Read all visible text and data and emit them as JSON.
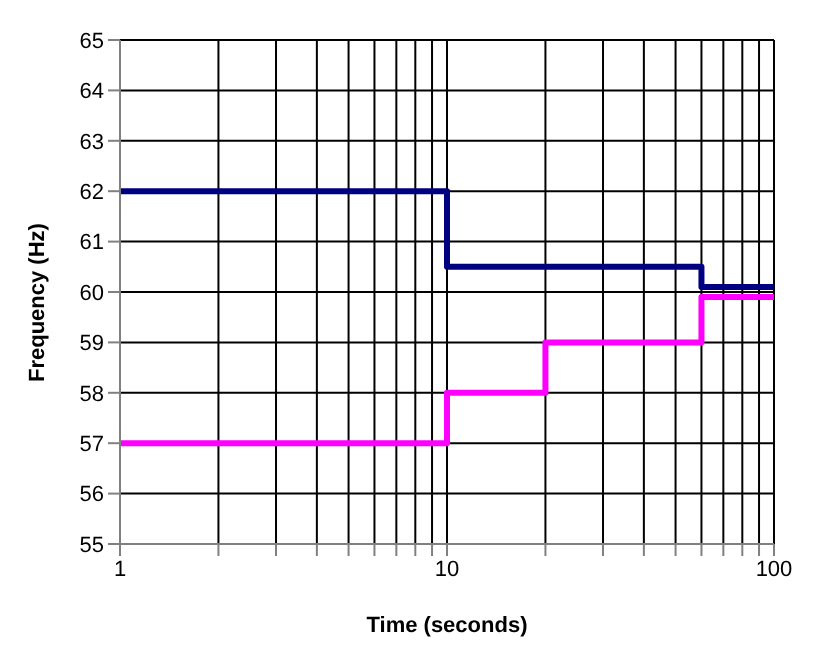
{
  "chart_data": {
    "type": "step",
    "xlabel": "Time (seconds)",
    "ylabel": "Frequency (Hz)",
    "log": "x",
    "grid": true,
    "marker": "none",
    "line_style": "solid",
    "xlim": [
      1,
      100
    ],
    "ylim": [
      55,
      65
    ],
    "xticks": [
      1,
      {
        "value": 2,
        "label": null
      },
      {
        "value": 3,
        "label": null
      },
      {
        "value": 4,
        "label": null
      },
      {
        "value": 5,
        "label": null
      },
      {
        "value": 6,
        "label": null
      },
      {
        "value": 7,
        "label": null
      },
      {
        "value": 8,
        "label": null
      },
      {
        "value": 9,
        "label": null
      },
      10,
      {
        "value": 20,
        "label": null
      },
      {
        "value": 30,
        "label": null
      },
      {
        "value": 40,
        "label": null
      },
      {
        "value": 50,
        "label": null
      },
      {
        "value": 60,
        "label": null
      },
      {
        "value": 70,
        "label": null
      },
      {
        "value": 80,
        "label": null
      },
      {
        "value": 90,
        "label": null
      },
      100
    ],
    "yticks": [
      55,
      56,
      57,
      58,
      59,
      60,
      61,
      62,
      63,
      64,
      65
    ],
    "series": [
      {
        "color": "#000080",
        "x": [
          1,
          10,
          60,
          100
        ],
        "values": [
          62,
          60.5,
          60.1,
          60.1
        ]
      },
      {
        "color": "#ff00ff",
        "x": [
          1,
          10,
          20,
          60,
          100
        ],
        "values": [
          57,
          58,
          59,
          59.9,
          59.9
        ]
      }
    ]
  }
}
